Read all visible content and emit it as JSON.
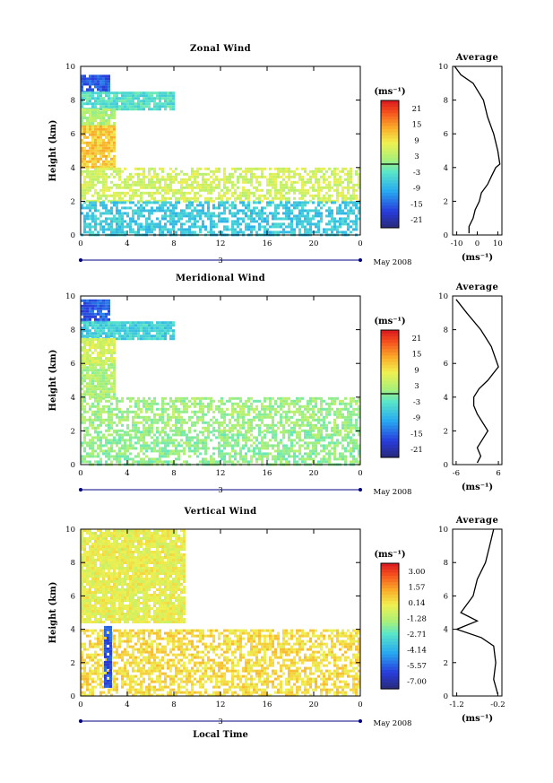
{
  "chart_data": [
    {
      "type": "heatmap",
      "title": "Zonal Wind",
      "ylabel": "Height (km)",
      "xlabel": "",
      "x_ticks": [
        "0",
        "4",
        "8",
        "12",
        "16",
        "20",
        "0"
      ],
      "y_ticks": [
        "0",
        "2",
        "4",
        "6",
        "8",
        "10"
      ],
      "xlim": [
        0,
        24
      ],
      "ylim": [
        0,
        10
      ],
      "date_label": "May 2008",
      "date_marker": "3",
      "colorbar": {
        "unit": "(ms⁻¹)",
        "ticks": [
          "21",
          "15",
          "9",
          "3",
          "-3",
          "-9",
          "-15",
          "-21"
        ],
        "range": [
          -24,
          24
        ],
        "zero_line": true
      },
      "regions": [
        {
          "x": [
            0,
            2.5
          ],
          "y": [
            8.5,
            9.5
          ],
          "value": -15
        },
        {
          "x": [
            0,
            8
          ],
          "y": [
            7.5,
            8.5
          ],
          "value": -3
        },
        {
          "x": [
            0,
            3
          ],
          "y": [
            6.5,
            7.5
          ],
          "value": 3
        },
        {
          "x": [
            0,
            3
          ],
          "y": [
            4,
            6.5
          ],
          "value": 12
        },
        {
          "x": [
            0,
            24
          ],
          "y": [
            2,
            4
          ],
          "value": 6
        },
        {
          "x": [
            0,
            24
          ],
          "y": [
            0,
            2
          ],
          "value": -6
        }
      ],
      "profile": {
        "title": "Average",
        "xlabel": "(ms⁻¹)",
        "x_ticks": [
          "-10",
          "0",
          "10"
        ],
        "xlim": [
          -12,
          12
        ],
        "y_ticks": [
          "0",
          "2",
          "4",
          "6",
          "8",
          "10"
        ],
        "ylim": [
          0,
          10
        ],
        "points": [
          [
            -4,
            0.1
          ],
          [
            -4,
            0.5
          ],
          [
            -2,
            1
          ],
          [
            -1,
            1.5
          ],
          [
            1,
            2
          ],
          [
            2,
            2.5
          ],
          [
            5,
            3
          ],
          [
            7,
            3.5
          ],
          [
            9,
            4
          ],
          [
            11,
            4.2
          ],
          [
            10,
            5
          ],
          [
            8,
            6
          ],
          [
            5,
            7
          ],
          [
            3,
            8
          ],
          [
            -2,
            9
          ],
          [
            -8,
            9.5
          ],
          [
            -11,
            10
          ]
        ]
      }
    },
    {
      "type": "heatmap",
      "title": "Meridional Wind",
      "ylabel": "Height (km)",
      "xlabel": "",
      "x_ticks": [
        "0",
        "4",
        "8",
        "12",
        "16",
        "20",
        "0"
      ],
      "y_ticks": [
        "0",
        "2",
        "4",
        "6",
        "8",
        "10"
      ],
      "xlim": [
        0,
        24
      ],
      "ylim": [
        0,
        10
      ],
      "date_label": "May 2008",
      "date_marker": "3",
      "colorbar": {
        "unit": "(ms⁻¹)",
        "ticks": [
          "21",
          "15",
          "9",
          "3",
          "-3",
          "-9",
          "-15",
          "-21"
        ],
        "range": [
          -24,
          24
        ],
        "zero_line": true
      },
      "regions": [
        {
          "x": [
            0,
            2.5
          ],
          "y": [
            8.5,
            9.8
          ],
          "value": -15
        },
        {
          "x": [
            0,
            8
          ],
          "y": [
            7.5,
            8.5
          ],
          "value": -5
        },
        {
          "x": [
            0,
            3
          ],
          "y": [
            6,
            7.5
          ],
          "value": 6
        },
        {
          "x": [
            0,
            3
          ],
          "y": [
            4,
            6
          ],
          "value": 3
        },
        {
          "x": [
            0,
            24
          ],
          "y": [
            2,
            4
          ],
          "value": 2
        },
        {
          "x": [
            0,
            24
          ],
          "y": [
            0,
            2
          ],
          "value": 1
        }
      ],
      "profile": {
        "title": "Average",
        "xlabel": "(ms⁻¹)",
        "x_ticks": [
          "-6",
          "6"
        ],
        "xlim": [
          -7,
          7
        ],
        "y_ticks": [
          "0",
          "2",
          "4",
          "6",
          "8",
          "10"
        ],
        "ylim": [
          0,
          10
        ],
        "points": [
          [
            0,
            0.1
          ],
          [
            1,
            0.5
          ],
          [
            0,
            1
          ],
          [
            1.5,
            1.5
          ],
          [
            3,
            2
          ],
          [
            0,
            3
          ],
          [
            -1,
            3.5
          ],
          [
            -1,
            4
          ],
          [
            0.5,
            4.5
          ],
          [
            3,
            5
          ],
          [
            6,
            5.8
          ],
          [
            4,
            7
          ],
          [
            1,
            8
          ],
          [
            -3,
            9
          ],
          [
            -6,
            9.8
          ]
        ]
      }
    },
    {
      "type": "heatmap",
      "title": "Vertical Wind",
      "ylabel": "Height (km)",
      "xlabel": "Local Time",
      "x_ticks": [
        "0",
        "4",
        "8",
        "12",
        "16",
        "20",
        "0"
      ],
      "y_ticks": [
        "0",
        "2",
        "4",
        "6",
        "8",
        "10"
      ],
      "xlim": [
        0,
        24
      ],
      "ylim": [
        0,
        10
      ],
      "date_label": "May 2008",
      "date_marker": "3",
      "colorbar": {
        "unit": "(ms⁻¹)",
        "ticks": [
          "3.00",
          "1.57",
          "0.14",
          "-1.28",
          "-2.71",
          "-4.14",
          "-5.57",
          "-7.00"
        ],
        "range": [
          -8,
          4
        ],
        "zero_line": false
      },
      "regions": [
        {
          "x": [
            0,
            9
          ],
          "y": [
            4.5,
            10
          ],
          "value": 0
        },
        {
          "x": [
            0,
            24
          ],
          "y": [
            0,
            4
          ],
          "value": 0.6
        },
        {
          "x": [
            2,
            2.5
          ],
          "y": [
            0.5,
            4.2
          ],
          "value": -6
        }
      ],
      "profile": {
        "title": "Average",
        "xlabel": "(ms⁻¹)",
        "x_ticks": [
          "-1.2",
          "-0.2"
        ],
        "xlim": [
          -1.3,
          -0.1
        ],
        "y_ticks": [
          "0",
          "2",
          "4",
          "6",
          "8",
          "10"
        ],
        "ylim": [
          0,
          10
        ],
        "points": [
          [
            -0.2,
            0.1
          ],
          [
            -0.3,
            1
          ],
          [
            -0.25,
            2
          ],
          [
            -0.3,
            3
          ],
          [
            -0.6,
            3.5
          ],
          [
            -1.2,
            4
          ],
          [
            -0.7,
            4.5
          ],
          [
            -1.1,
            5
          ],
          [
            -0.8,
            6
          ],
          [
            -0.7,
            7
          ],
          [
            -0.5,
            8
          ],
          [
            -0.4,
            9
          ],
          [
            -0.3,
            10
          ]
        ]
      }
    }
  ]
}
